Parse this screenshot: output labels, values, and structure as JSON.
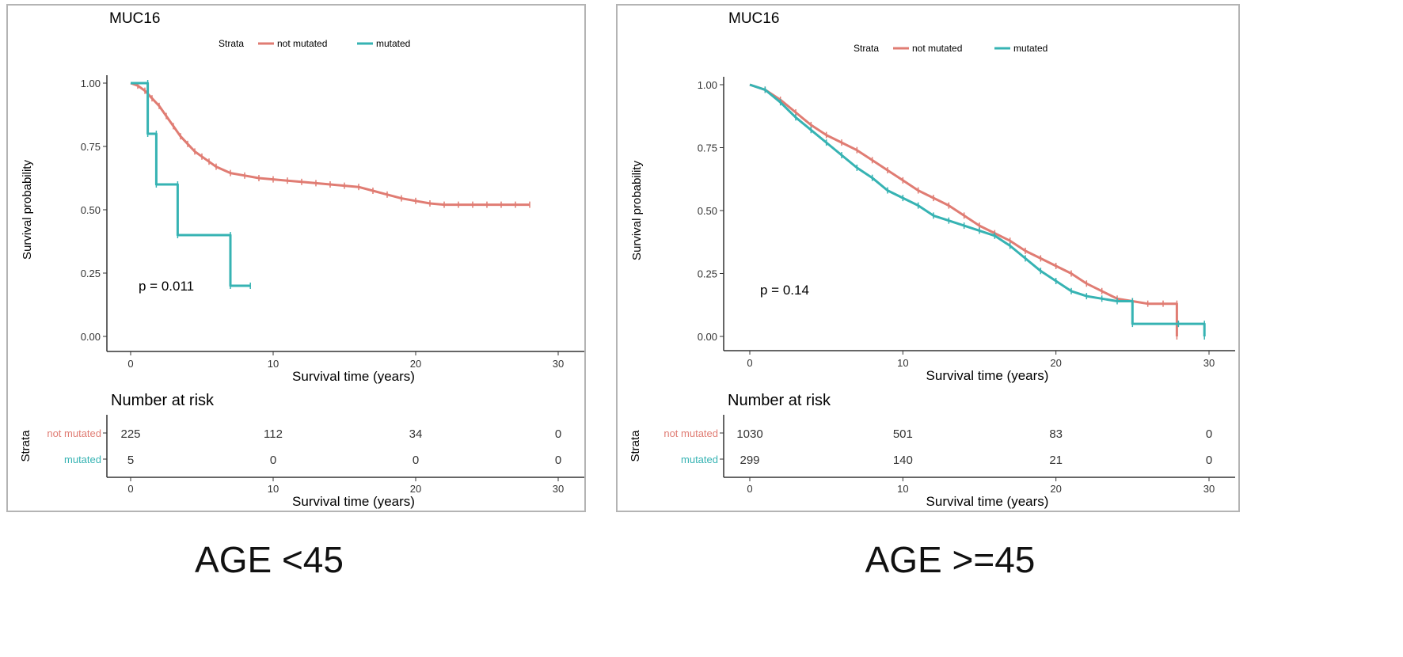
{
  "chart_data": [
    {
      "type": "line",
      "title": "MUC16",
      "caption": "AGE <45",
      "legend_title": "Strata",
      "xlabel": "Survival time (years)",
      "ylabel": "Survival probability",
      "xlim": [
        0,
        30
      ],
      "ylim": [
        0,
        1
      ],
      "x_ticks": [
        "0",
        "10",
        "20",
        "30"
      ],
      "y_ticks": [
        "0.00",
        "0.25",
        "0.50",
        "0.75",
        "1.00"
      ],
      "p_value": "p = 0.011",
      "risk_title": "Number at risk",
      "risk_ylabel": "Strata",
      "risk_xlabel": "Survival time (years)",
      "colors": {
        "not_mutated": "#e07c73",
        "mutated": "#36b3b3"
      },
      "series": [
        {
          "name": "not mutated",
          "color": "#e07c73",
          "x": [
            0,
            0.5,
            1,
            1.5,
            2,
            2.5,
            3,
            3.5,
            4,
            4.5,
            5,
            5.5,
            6,
            7,
            8,
            9,
            10,
            11,
            12,
            13,
            14,
            15,
            16,
            17,
            18,
            19,
            20,
            21,
            22,
            23,
            24,
            25,
            26,
            27,
            28
          ],
          "y": [
            1.0,
            0.99,
            0.97,
            0.94,
            0.91,
            0.87,
            0.83,
            0.79,
            0.76,
            0.73,
            0.71,
            0.69,
            0.67,
            0.645,
            0.635,
            0.625,
            0.62,
            0.615,
            0.61,
            0.605,
            0.6,
            0.595,
            0.59,
            0.575,
            0.56,
            0.545,
            0.535,
            0.525,
            0.52,
            0.52,
            0.52,
            0.52,
            0.52,
            0.52,
            0.52
          ]
        },
        {
          "name": "mutated",
          "color": "#36b3b3",
          "step": true,
          "x": [
            0,
            1.2,
            1.2,
            1.8,
            1.8,
            3.3,
            3.3,
            7.0,
            7.0,
            8.4
          ],
          "y": [
            1.0,
            1.0,
            0.8,
            0.8,
            0.6,
            0.6,
            0.4,
            0.4,
            0.2,
            0.2
          ]
        }
      ],
      "risk_table": {
        "rows": [
          {
            "label": "not mutated",
            "color": "#e07c73",
            "values": [
              "225",
              "112",
              "34",
              "0"
            ]
          },
          {
            "label": "mutated",
            "color": "#36b3b3",
            "values": [
              "5",
              "0",
              "0",
              "0"
            ]
          }
        ]
      }
    },
    {
      "type": "line",
      "title": "MUC16",
      "caption": "AGE >=45",
      "legend_title": "Strata",
      "xlabel": "Survival time (years)",
      "ylabel": "Survival probability",
      "xlim": [
        0,
        30
      ],
      "ylim": [
        0,
        1
      ],
      "x_ticks": [
        "0",
        "10",
        "20",
        "30"
      ],
      "y_ticks": [
        "0.00",
        "0.25",
        "0.50",
        "0.75",
        "1.00"
      ],
      "p_value": "p = 0.14",
      "risk_title": "Number at risk",
      "risk_ylabel": "Strata",
      "risk_xlabel": "Survival time (years)",
      "colors": {
        "not_mutated": "#e07c73",
        "mutated": "#36b3b3"
      },
      "series": [
        {
          "name": "not mutated",
          "color": "#e07c73",
          "x": [
            0,
            1,
            2,
            3,
            4,
            5,
            6,
            7,
            8,
            9,
            10,
            11,
            12,
            13,
            14,
            15,
            16,
            17,
            18,
            19,
            20,
            21,
            22,
            23,
            24,
            25,
            26,
            27,
            27.9,
            27.9
          ],
          "y": [
            1.0,
            0.98,
            0.94,
            0.89,
            0.84,
            0.8,
            0.77,
            0.74,
            0.7,
            0.66,
            0.62,
            0.58,
            0.55,
            0.52,
            0.48,
            0.44,
            0.41,
            0.38,
            0.34,
            0.31,
            0.28,
            0.25,
            0.21,
            0.18,
            0.15,
            0.14,
            0.13,
            0.13,
            0.13,
            0.0
          ]
        },
        {
          "name": "mutated",
          "color": "#36b3b3",
          "step": true,
          "x": [
            0,
            1,
            2,
            3,
            4,
            5,
            6,
            7,
            8,
            9,
            10,
            11,
            12,
            13,
            14,
            15,
            16,
            17,
            18,
            19,
            20,
            21,
            22,
            23,
            24,
            25,
            25,
            28,
            28,
            29.7,
            29.7
          ],
          "y": [
            1.0,
            0.98,
            0.93,
            0.87,
            0.82,
            0.77,
            0.72,
            0.67,
            0.63,
            0.58,
            0.55,
            0.52,
            0.48,
            0.46,
            0.44,
            0.42,
            0.4,
            0.36,
            0.31,
            0.26,
            0.22,
            0.18,
            0.16,
            0.15,
            0.14,
            0.14,
            0.05,
            0.05,
            0.05,
            0.05,
            0.0
          ]
        }
      ],
      "risk_table": {
        "rows": [
          {
            "label": "not mutated",
            "color": "#e07c73",
            "values": [
              "1030",
              "501",
              "83",
              "0"
            ]
          },
          {
            "label": "mutated",
            "color": "#36b3b3",
            "values": [
              "299",
              "140",
              "21",
              "0"
            ]
          }
        ]
      }
    }
  ]
}
